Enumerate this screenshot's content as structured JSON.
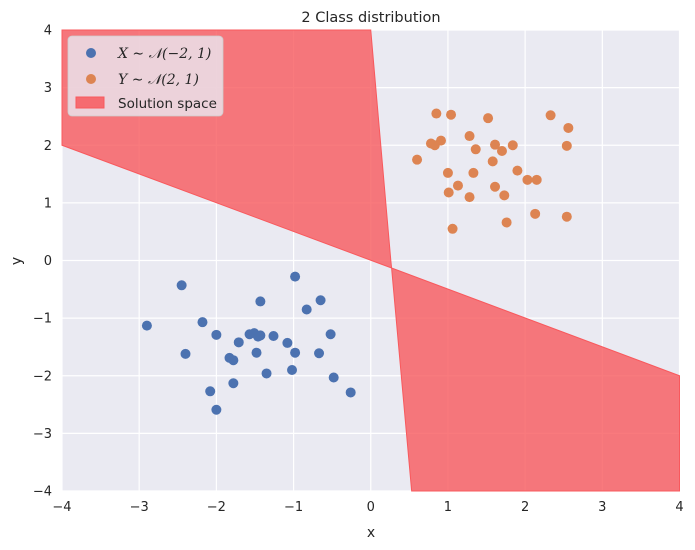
{
  "chart_data": {
    "type": "scatter",
    "title": "2 Class distribution",
    "xlabel": "x",
    "ylabel": "y",
    "xlim": [
      -4,
      4
    ],
    "ylim": [
      -4,
      4
    ],
    "xticks": [
      -4,
      -3,
      -2,
      -1,
      0,
      1,
      2,
      3,
      4
    ],
    "yticks": [
      -4,
      -3,
      -2,
      -1,
      0,
      1,
      2,
      3,
      4
    ],
    "xtick_labels": [
      "−4",
      "−3",
      "−2",
      "−1",
      "0",
      "1",
      "2",
      "3",
      "4"
    ],
    "ytick_labels": [
      "−4",
      "−3",
      "−2",
      "−1",
      "0",
      "1",
      "2",
      "3",
      "4"
    ],
    "grid": true,
    "background": "#eaeaf2",
    "legend_position": "top-left",
    "series": [
      {
        "name": "X ∼ 𝒩(−2, 1)",
        "color": "#4c72b0",
        "points": [
          [
            -2.9,
            -1.13
          ],
          [
            -2.45,
            -0.43
          ],
          [
            -2.4,
            -1.62
          ],
          [
            -2.18,
            -1.07
          ],
          [
            -2.0,
            -1.29
          ],
          [
            -2.08,
            -2.27
          ],
          [
            -2.0,
            -2.59
          ],
          [
            -1.83,
            -1.69
          ],
          [
            -1.78,
            -1.73
          ],
          [
            -1.78,
            -2.13
          ],
          [
            -1.71,
            -1.42
          ],
          [
            -1.57,
            -1.28
          ],
          [
            -1.51,
            -1.26
          ],
          [
            -1.48,
            -1.6
          ],
          [
            -1.46,
            -1.32
          ],
          [
            -1.43,
            -1.3
          ],
          [
            -1.43,
            -0.71
          ],
          [
            -1.35,
            -1.96
          ],
          [
            -1.26,
            -1.31
          ],
          [
            -1.08,
            -1.43
          ],
          [
            -1.02,
            -1.9
          ],
          [
            -0.98,
            -1.6
          ],
          [
            -0.98,
            -0.28
          ],
          [
            -0.83,
            -0.85
          ],
          [
            -0.67,
            -1.61
          ],
          [
            -0.65,
            -0.69
          ],
          [
            -0.52,
            -1.28
          ],
          [
            -0.48,
            -2.03
          ],
          [
            -0.26,
            -2.29
          ]
        ]
      },
      {
        "name": "Y ∼ 𝒩(2, 1)",
        "color": "#dd8452",
        "points": [
          [
            0.6,
            1.75
          ],
          [
            0.78,
            2.03
          ],
          [
            0.83,
            2.0
          ],
          [
            0.85,
            2.55
          ],
          [
            0.91,
            2.08
          ],
          [
            1.0,
            1.52
          ],
          [
            1.01,
            1.18
          ],
          [
            1.04,
            2.53
          ],
          [
            1.06,
            0.55
          ],
          [
            1.13,
            1.3
          ],
          [
            1.28,
            1.1
          ],
          [
            1.28,
            2.16
          ],
          [
            1.33,
            1.52
          ],
          [
            1.36,
            1.93
          ],
          [
            1.52,
            2.47
          ],
          [
            1.58,
            1.72
          ],
          [
            1.61,
            1.28
          ],
          [
            1.61,
            2.01
          ],
          [
            1.7,
            1.9
          ],
          [
            1.73,
            1.13
          ],
          [
            1.76,
            0.66
          ],
          [
            1.84,
            2.0
          ],
          [
            1.9,
            1.56
          ],
          [
            2.03,
            1.4
          ],
          [
            2.13,
            0.81
          ],
          [
            2.15,
            1.4
          ],
          [
            2.33,
            2.52
          ],
          [
            2.54,
            1.99
          ],
          [
            2.54,
            0.76
          ],
          [
            2.56,
            2.3
          ]
        ]
      }
    ],
    "region": {
      "name": "Solution space",
      "color": "#f8595d",
      "boundary_lines": [
        {
          "through": [
            [
              -4,
              2.0
            ],
            [
              4,
              -2.0
            ]
          ]
        },
        {
          "through": [
            [
              0.0,
              4.0
            ],
            [
              0.53,
              -4.0
            ]
          ]
        }
      ],
      "polygons": [
        [
          [
            -4,
            4
          ],
          [
            0.0,
            4
          ],
          [
            0.26,
            0.0
          ],
          [
            0.27,
            -0.13
          ],
          [
            -4,
            2.0
          ]
        ],
        [
          [
            0.27,
            -0.13
          ],
          [
            4,
            -2.0
          ],
          [
            4,
            -4
          ],
          [
            0.53,
            -4
          ]
        ]
      ]
    }
  }
}
